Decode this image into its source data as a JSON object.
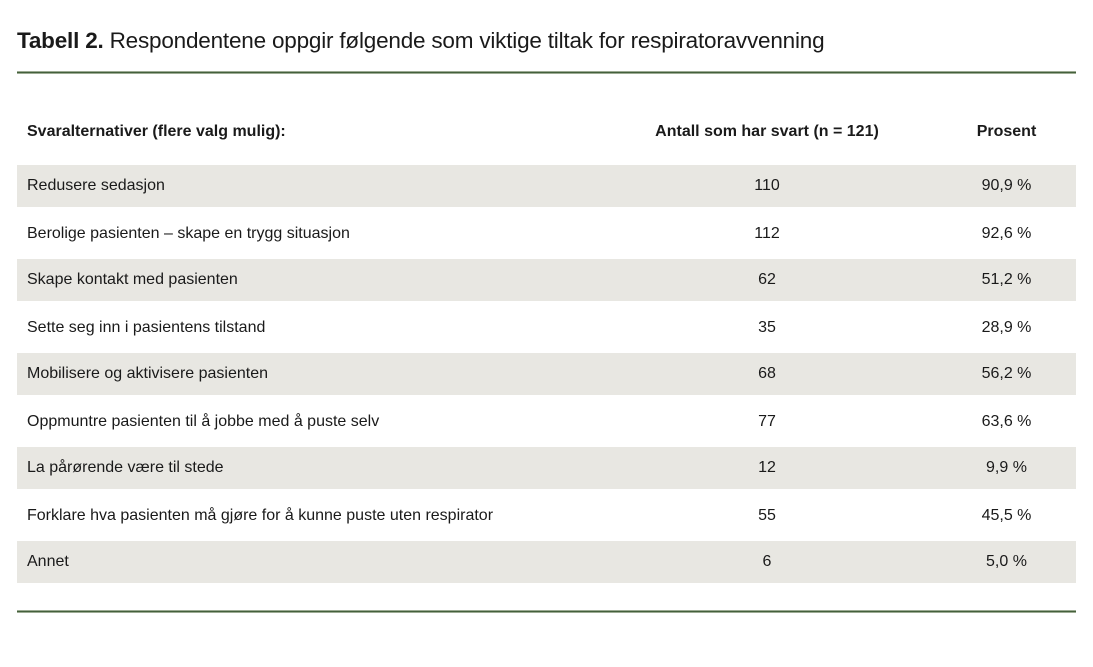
{
  "page": {
    "title_label": "Tabell 2.",
    "title_text": " Respondentene oppgir følgende som viktige tiltak for respiratoravvenning"
  },
  "table": {
    "headers": {
      "alternatives": "Svaralternativer (flere valg mulig):",
      "count": "Antall som har svart (n = 121)",
      "percent": "Prosent"
    },
    "rows": [
      {
        "alternative": "Redusere sedasjon",
        "count": "110",
        "percent": "90,9 %"
      },
      {
        "alternative": "Berolige pasienten – skape en trygg situasjon",
        "count": "112",
        "percent": "92,6 %"
      },
      {
        "alternative": "Skape kontakt med pasienten",
        "count": "62",
        "percent": "51,2 %"
      },
      {
        "alternative": "Sette seg inn i pasientens tilstand",
        "count": "35",
        "percent": "28,9 %"
      },
      {
        "alternative": "Mobilisere og aktivisere pasienten",
        "count": "68",
        "percent": "56,2 %"
      },
      {
        "alternative": "Oppmuntre pasienten til å jobbe med å puste selv",
        "count": "77",
        "percent": "63,6 %"
      },
      {
        "alternative": "La pårørende være til stede",
        "count": "12",
        "percent": "9,9 %"
      },
      {
        "alternative": "Forklare hva pasienten må gjøre for å kunne puste uten respirator",
        "count": "55",
        "percent": "45,5 %"
      },
      {
        "alternative": "Annet",
        "count": "6",
        "percent": "5,0 %"
      }
    ]
  },
  "colors": {
    "accent_rule_green": "#44603c",
    "row_stripe": "#e8e7e2",
    "text": "#1a1a1a"
  }
}
